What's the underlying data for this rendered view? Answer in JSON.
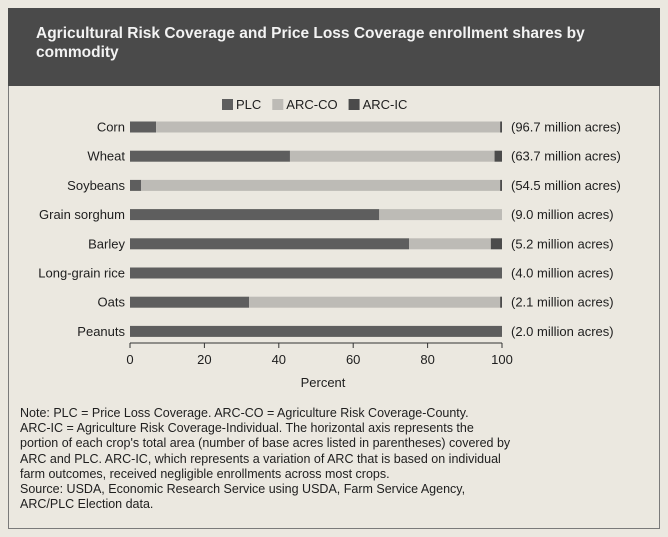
{
  "header": {
    "title": "Agricultural Risk Coverage and Price Loss Coverage enrollment shares by commodity"
  },
  "colors": {
    "PLC": "#5e5e5e",
    "ARC-CO": "#bdbbb6",
    "ARC-IC": "#4b4b4b",
    "background": "#ebe8e0"
  },
  "chart_data": {
    "type": "bar",
    "orientation": "horizontal",
    "stacked": true,
    "categories": [
      "Corn",
      "Wheat",
      "Soybeans",
      "Grain sorghum",
      "Barley",
      "Long-grain rice",
      "Oats",
      "Peanuts"
    ],
    "bar_labels": [
      "(96.7 million acres)",
      "(63.7 million acres)",
      "(54.5 million acres)",
      "(9.0 million acres)",
      "(5.2 million acres)",
      "(4.0 million acres)",
      "(2.1 million acres)",
      "(2.0 million acres)"
    ],
    "series": [
      {
        "name": "PLC",
        "values": [
          7,
          43,
          3,
          67,
          75,
          100,
          32,
          100
        ]
      },
      {
        "name": "ARC-CO",
        "values": [
          92.5,
          55,
          96.5,
          33,
          22,
          0,
          67.5,
          0
        ]
      },
      {
        "name": "ARC-IC",
        "values": [
          0.5,
          2,
          0.5,
          0,
          3,
          0,
          0.5,
          0
        ]
      }
    ],
    "xlabel": "Percent",
    "xlim": [
      0,
      100
    ],
    "xticks": [
      0,
      20,
      40,
      60,
      80,
      100
    ],
    "legend_position": "top"
  },
  "note": {
    "lines": [
      "Note: PLC = Price Loss Coverage. ARC-CO = Agriculture Risk Coverage-County.",
      "ARC-IC = Agriculture Risk Coverage-Individual. The horizontal axis represents the",
      "portion of each crop's total area (number of base acres listed in parentheses) covered by",
      "ARC and PLC. ARC-IC, which represents a variation of ARC that is based on individual",
      "farm outcomes, received negligible enrollments across most crops.",
      "Source: USDA, Economic Research Service using USDA, Farm Service Agency,",
      "ARC/PLC Election data."
    ]
  }
}
